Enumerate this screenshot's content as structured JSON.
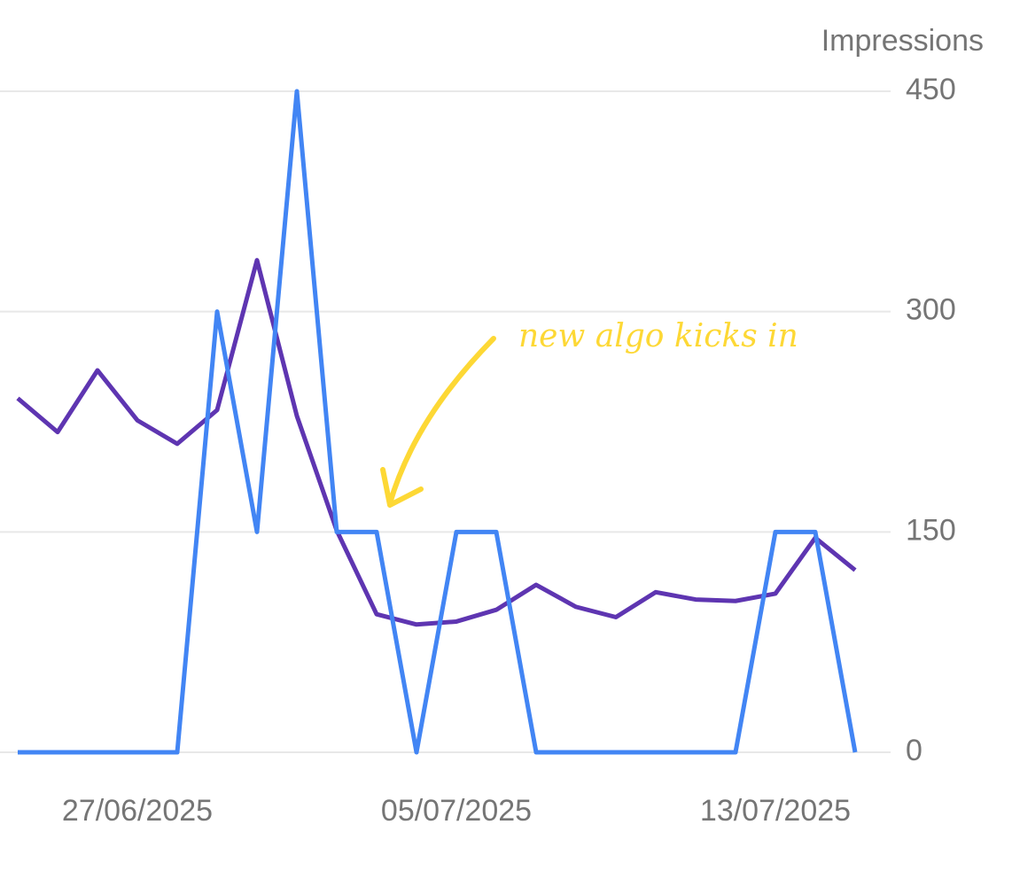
{
  "chart_data": {
    "type": "line",
    "y_axis_label": "Impressions",
    "annotation": "new algo kicks in",
    "categories": [
      null,
      null,
      null,
      "27/06/2025",
      null,
      null,
      null,
      null,
      null,
      null,
      null,
      "05/07/2025",
      null,
      null,
      null,
      null,
      null,
      null,
      null,
      "13/07/2025",
      null,
      null
    ],
    "series": [
      {
        "color": "#5e35b1",
        "values": [
          241,
          218,
          260,
          226,
          210,
          233,
          335,
          229,
          151,
          94,
          87,
          89,
          97,
          114,
          99,
          92,
          109,
          104,
          103,
          108,
          146,
          124
        ]
      },
      {
        "color": "#4285f4",
        "values": [
          0,
          0,
          0,
          0,
          0,
          300,
          150,
          450,
          150,
          150,
          0,
          150,
          150,
          0,
          0,
          0,
          0,
          0,
          0,
          150,
          150,
          0
        ]
      }
    ],
    "ylim": [
      0,
      450
    ],
    "yticks": [
      0,
      150,
      300,
      450
    ],
    "grid": true
  }
}
